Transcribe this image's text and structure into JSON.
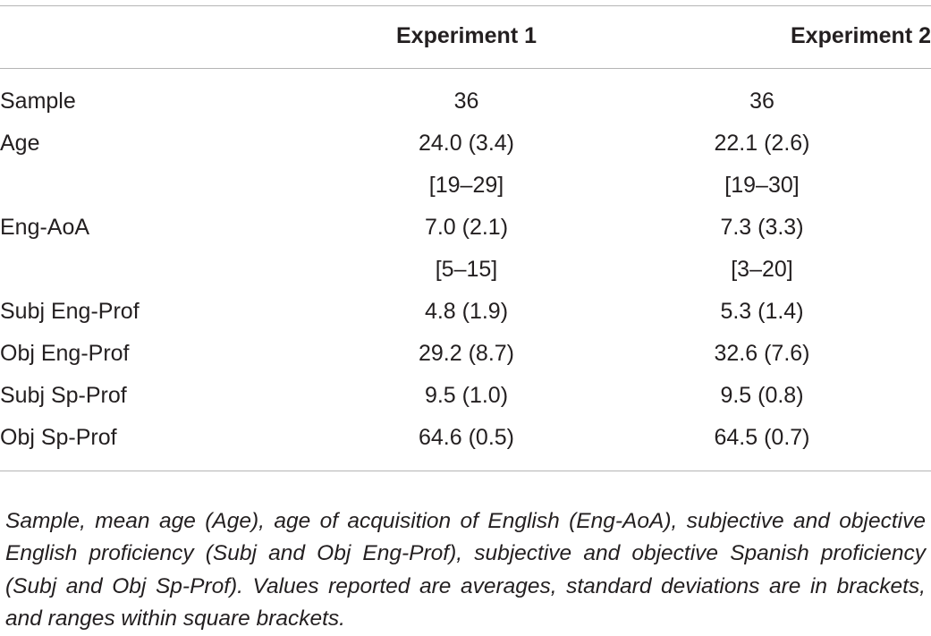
{
  "table": {
    "headers": [
      "",
      "Experiment 1",
      "Experiment 2"
    ],
    "rows": [
      {
        "label": "Sample",
        "exp1": "36",
        "exp2": "36"
      },
      {
        "label": "Age",
        "exp1": "24.0 (3.4)",
        "exp2": "22.1 (2.6)"
      },
      {
        "label": "",
        "exp1": "[19–29]",
        "exp2": "[19–30]"
      },
      {
        "label": "Eng-AoA",
        "exp1": "7.0 (2.1)",
        "exp2": "7.3 (3.3)"
      },
      {
        "label": "",
        "exp1": "[5–15]",
        "exp2": "[3–20]"
      },
      {
        "label": "Subj Eng-Prof",
        "exp1": "4.8 (1.9)",
        "exp2": "5.3 (1.4)"
      },
      {
        "label": "Obj Eng-Prof",
        "exp1": "29.2 (8.7)",
        "exp2": "32.6 (7.6)"
      },
      {
        "label": "Subj Sp-Prof",
        "exp1": "9.5 (1.0)",
        "exp2": "9.5 (0.8)"
      },
      {
        "label": "Obj Sp-Prof",
        "exp1": "64.6 (0.5)",
        "exp2": "64.5 (0.7)"
      }
    ]
  },
  "footnote": "Sample, mean age (Age), age of acquisition of English (Eng-AoA), subjective and objective English proficiency (Subj and Obj Eng-Prof), subjective and objective Spanish proficiency (Subj and Obj Sp-Prof). Values reported are averages, standard deviations are in brackets, and ranges within square brackets."
}
